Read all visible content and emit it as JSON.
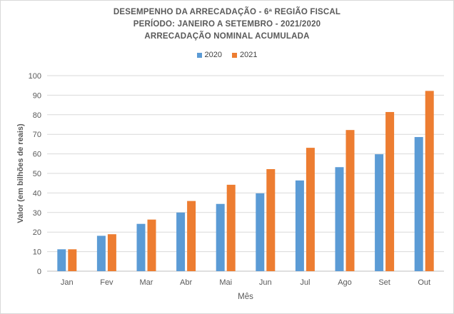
{
  "chart_data": {
    "type": "bar",
    "title_lines": [
      "DESEMPENHO  DA ARRECADAÇÃO - 6ª REGIÃO  FISCAL",
      "PERÍODO:  JANEIRO  A SETEMBRO  - 2021/2020",
      "ARRECADAÇÃO  NOMINAL ACUMULADA"
    ],
    "xlabel": "Mês",
    "ylabel": "Valor (em bilhões de reais)",
    "ylim": [
      0,
      100
    ],
    "yticks": [
      "0",
      "10",
      "20",
      "30",
      "40",
      "50",
      "60",
      "70",
      "80",
      "90",
      "100"
    ],
    "categories": [
      "Jan",
      "Fev",
      "Mar",
      "Abr",
      "Mai",
      "Jun",
      "Jul",
      "Ago",
      "Set",
      "Out"
    ],
    "series": [
      {
        "name": "2020",
        "color": "#5b9bd5",
        "values": [
          11.2,
          18.1,
          24.2,
          30.0,
          34.4,
          39.8,
          46.4,
          53.2,
          59.8,
          68.6
        ]
      },
      {
        "name": "2021",
        "color": "#ed7d31",
        "values": [
          11.2,
          18.9,
          26.4,
          35.9,
          44.2,
          52.2,
          63.1,
          72.2,
          81.4,
          92.2
        ]
      }
    ],
    "grid": true,
    "legend_position": "top-center"
  }
}
